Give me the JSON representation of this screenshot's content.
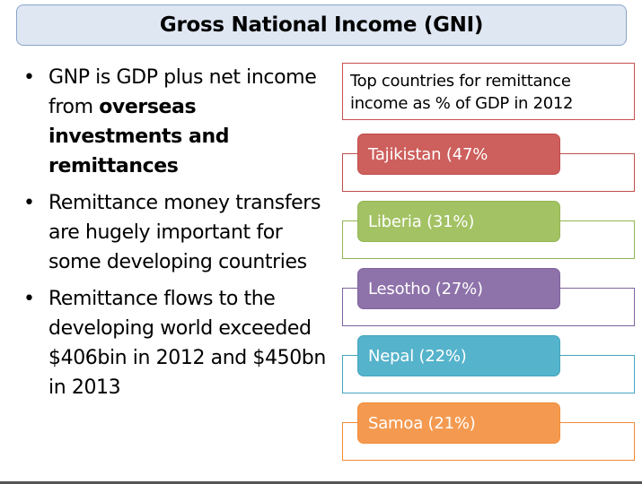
{
  "title": "Gross National Income (GNI)",
  "bullets": [
    {
      "pre": "GNP is GDP plus net income from ",
      "bold": "overseas investments and remittances",
      "post": ""
    },
    {
      "pre": "Remittance money transfers are hugely important for some developing countries",
      "bold": "",
      "post": ""
    },
    {
      "pre": "Remittance flows to the developing world exceeded $406bin in 2012 and $450bn in 2013",
      "bold": "",
      "post": ""
    }
  ],
  "bullet_char": "•",
  "box_header": "Top countries for remittance income as % of GDP in 2012",
  "countries": [
    {
      "label": "Tajikistan (47%",
      "color": "#cd5f5c",
      "border": "#c04e4b"
    },
    {
      "label": "Liberia (31%)",
      "color": "#a3c264",
      "border": "#93b552"
    },
    {
      "label": "Lesotho (27%)",
      "color": "#8e72aa",
      "border": "#7f62a0"
    },
    {
      "label": "Nepal (22%)",
      "color": "#55b3cb",
      "border": "#44a6c0"
    },
    {
      "label": "Samoa (21%)",
      "color": "#f49a50",
      "border": "#f28b35"
    }
  ],
  "colors": {
    "header_border": "#c85050",
    "title_bg": "#dfe7f3",
    "title_border": "#8aa4c8"
  }
}
